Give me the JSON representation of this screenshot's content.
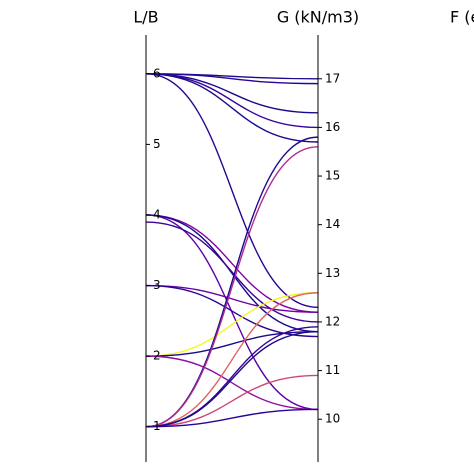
{
  "chart_data": {
    "type": "parallel",
    "axes": [
      {
        "title": "L/B",
        "ylim": [
          0.5,
          6.55
        ],
        "yticks": [
          1,
          2,
          3,
          4,
          5,
          6
        ]
      },
      {
        "title": "G (kN/m3)",
        "ylim": [
          9.12,
          17.9
        ],
        "yticks": [
          10,
          11,
          12,
          13,
          14,
          15,
          16,
          17
        ]
      },
      {
        "title": "F (e"
      }
    ],
    "series": [
      {
        "color": "#1a0b8c",
        "values": [
          6,
          17
        ]
      },
      {
        "color": "#2a0593",
        "values": [
          6,
          16.9
        ]
      },
      {
        "color": "#1a0b8c",
        "values": [
          6,
          16.3
        ]
      },
      {
        "color": "#3b049a",
        "values": [
          6,
          16
        ]
      },
      {
        "color": "#1a0b8c",
        "values": [
          6,
          15.7
        ]
      },
      {
        "color": "#2a0593",
        "values": [
          6,
          12.3
        ]
      },
      {
        "color": "#5c01a6",
        "values": [
          4,
          10.2
        ]
      },
      {
        "color": "#7e03a8",
        "values": [
          4,
          12.2
        ]
      },
      {
        "color": "#1a0b8c",
        "values": [
          4,
          11.8
        ]
      },
      {
        "color": "#3b049a",
        "values": [
          3.9,
          12
        ]
      },
      {
        "color": "#6a00a8",
        "values": [
          3,
          12.2
        ]
      },
      {
        "color": "#2a0593",
        "values": [
          3,
          11.7
        ]
      },
      {
        "color": "#f0f921",
        "values": [
          2,
          12.6
        ]
      },
      {
        "color": "#1a0b8c",
        "values": [
          2,
          11.8
        ]
      },
      {
        "color": "#8f0da4",
        "values": [
          2,
          10.2
        ]
      },
      {
        "color": "#1a0b8c",
        "values": [
          1,
          15.8
        ]
      },
      {
        "color": "#b12a90",
        "values": [
          1,
          15.6
        ]
      },
      {
        "color": "#e16462",
        "values": [
          1,
          12.6
        ]
      },
      {
        "color": "#3b049a",
        "values": [
          1,
          11.9
        ]
      },
      {
        "color": "#cc4778",
        "values": [
          1,
          10.9
        ]
      },
      {
        "color": "#1a0b8c",
        "values": [
          1,
          11.8
        ]
      },
      {
        "color": "#2a0593",
        "values": [
          1,
          10.2
        ]
      }
    ]
  }
}
